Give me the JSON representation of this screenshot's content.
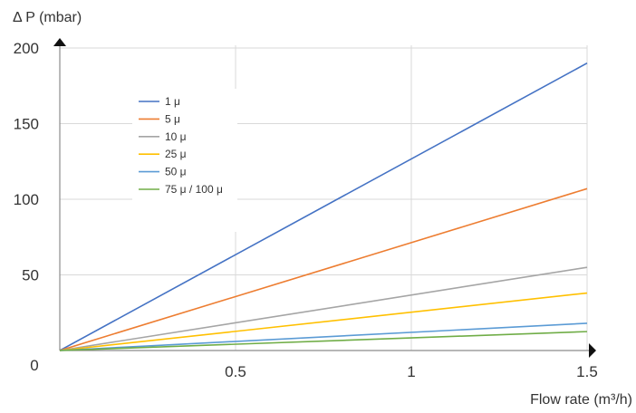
{
  "chart_data": {
    "type": "line",
    "ylabel": "Δ P (mbar)",
    "xlabel": "Flow rate (m³/h)",
    "xlim": [
      0,
      1.5
    ],
    "ylim": [
      0,
      200
    ],
    "x_ticks": [
      "0.5",
      "1",
      "1.5"
    ],
    "y_ticks": [
      "200",
      "150",
      "100",
      "50"
    ],
    "origin_label": "0",
    "grid": true,
    "legend_position": "upper-left inside plot",
    "series": [
      {
        "name": "1 μ",
        "color": "#4472C4",
        "x": [
          0,
          1.5
        ],
        "y": [
          0,
          190
        ]
      },
      {
        "name": "5 μ",
        "color": "#ED7D31",
        "x": [
          0,
          1.5
        ],
        "y": [
          0,
          107
        ]
      },
      {
        "name": "10 μ",
        "color": "#A5A5A5",
        "x": [
          0,
          1.5
        ],
        "y": [
          0,
          55
        ]
      },
      {
        "name": "25 μ",
        "color": "#FFC000",
        "x": [
          0,
          1.5
        ],
        "y": [
          0,
          38
        ]
      },
      {
        "name": "50 μ",
        "color": "#5B9BD5",
        "x": [
          0,
          1.5
        ],
        "y": [
          0,
          18
        ]
      },
      {
        "name": "75 μ / 100 μ",
        "color": "#70AD47",
        "x": [
          0,
          1.5
        ],
        "y": [
          0,
          12.5
        ]
      }
    ]
  }
}
